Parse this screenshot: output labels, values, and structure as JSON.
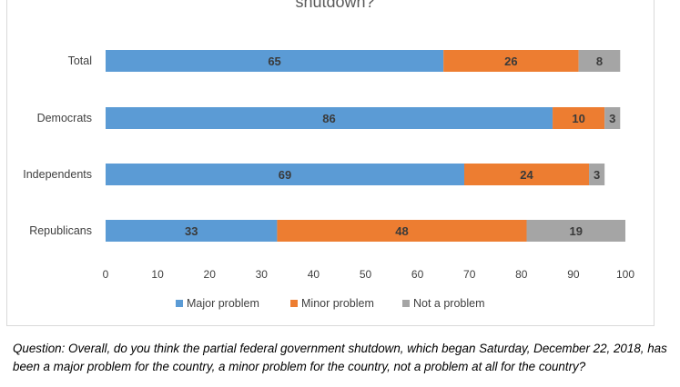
{
  "chart_data": {
    "type": "bar",
    "orientation": "horizontal",
    "stacked": true,
    "title": "shutdown?",
    "categories": [
      "Total",
      "Democrats",
      "Independents",
      "Republicans"
    ],
    "series": [
      {
        "name": "Major problem",
        "color": "#5b9bd5",
        "values": [
          65,
          86,
          69,
          33
        ]
      },
      {
        "name": "Minor problem",
        "color": "#ed7d31",
        "values": [
          26,
          10,
          24,
          48
        ]
      },
      {
        "name": "Not a problem",
        "color": "#a5a5a5",
        "values": [
          8,
          3,
          3,
          19
        ]
      }
    ],
    "xlim": [
      0,
      100
    ],
    "xticks": [
      "0",
      "10",
      "20",
      "30",
      "40",
      "50",
      "60",
      "70",
      "80",
      "90",
      "100"
    ],
    "grid": false,
    "legend_position": "bottom"
  },
  "caption": "Question: Overall, do you think the partial federal government shutdown, which began Saturday, December 22, 2018, has been a major problem for the country, a minor problem for the country, not a problem at all for the country?"
}
